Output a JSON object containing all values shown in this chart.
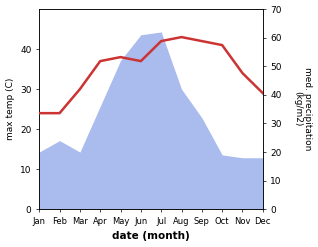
{
  "months": [
    "Jan",
    "Feb",
    "Mar",
    "Apr",
    "May",
    "Jun",
    "Jul",
    "Aug",
    "Sep",
    "Oct",
    "Nov",
    "Dec"
  ],
  "month_x": [
    1,
    2,
    3,
    4,
    5,
    6,
    7,
    8,
    9,
    10,
    11,
    12
  ],
  "temperature": [
    24,
    24,
    30,
    37,
    38,
    37,
    42,
    43,
    42,
    41,
    34,
    29
  ],
  "precipitation": [
    20,
    24,
    20,
    36,
    52,
    61,
    62,
    42,
    32,
    19,
    18,
    18
  ],
  "temp_color": "#cc3333",
  "precip_color": "#aabbee",
  "left_ylabel": "max temp (C)",
  "right_ylabel": "med. precipitation\n(kg/m2)",
  "xlabel": "date (month)",
  "left_ylim": [
    0,
    50
  ],
  "right_ylim": [
    0,
    70
  ],
  "left_yticks": [
    0,
    10,
    20,
    30,
    40
  ],
  "right_yticks": [
    0,
    10,
    20,
    30,
    40,
    50,
    60,
    70
  ],
  "temp_linewidth": 1.8,
  "fig_width": 3.18,
  "fig_height": 2.47
}
